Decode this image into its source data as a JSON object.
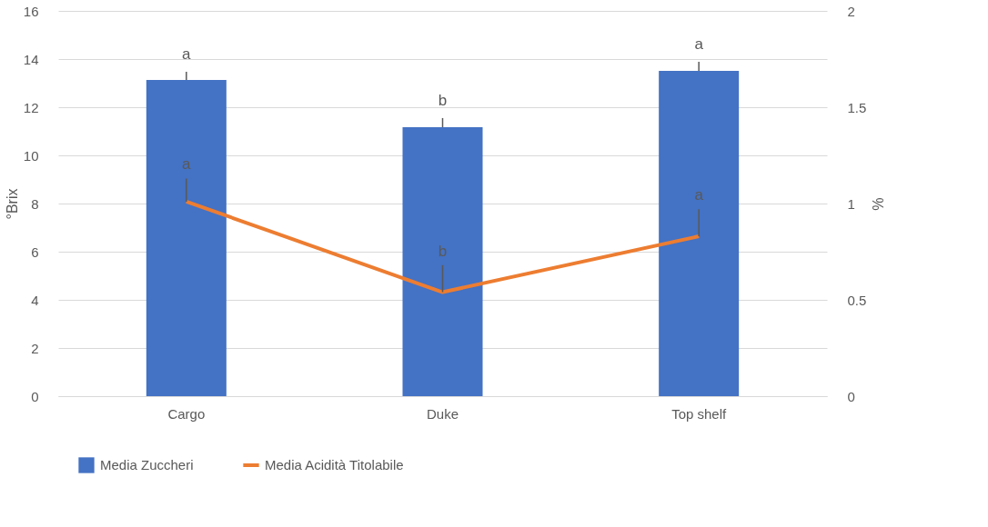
{
  "chart_data": {
    "type": "bar",
    "categories": [
      "Cargo",
      "Duke",
      "Top shelf"
    ],
    "ylabel": "°Brix",
    "y2label": "%",
    "ylim": [
      0,
      16
    ],
    "yticks": [
      0,
      2,
      4,
      6,
      8,
      10,
      12,
      14,
      16
    ],
    "y2lim": [
      0,
      2
    ],
    "y2ticks": [
      0,
      0.5,
      1,
      1.5,
      2
    ],
    "series": [
      {
        "name": "Media  Zuccheri",
        "color": "#4472c4",
        "values": [
          13.13,
          11.17,
          13.51
        ],
        "errors": [
          [
            13.13,
            13.47
          ],
          [
            11.17,
            11.55
          ],
          [
            13.51,
            13.89
          ]
        ]
      },
      {
        "name": "Media Acidità Titolabile",
        "type": "line",
        "axis": "y2",
        "color": "#ed7d31",
        "values": [
          1.01,
          0.54,
          0.83
        ],
        "errors": [
          [
            1.01,
            1.13
          ],
          [
            0.54,
            0.68
          ],
          [
            0.83,
            0.97
          ]
        ]
      }
    ],
    "annotations": [
      {
        "text": "a",
        "x": "Cargo",
        "y": 13.47
      },
      {
        "text": "b",
        "x": "Duke",
        "y": 11.55
      },
      {
        "text": "a",
        "x": "Top shelf",
        "y": 13.89
      },
      "a",
      "b",
      "a"
    ],
    "grid": "y",
    "legend": "bottom"
  }
}
